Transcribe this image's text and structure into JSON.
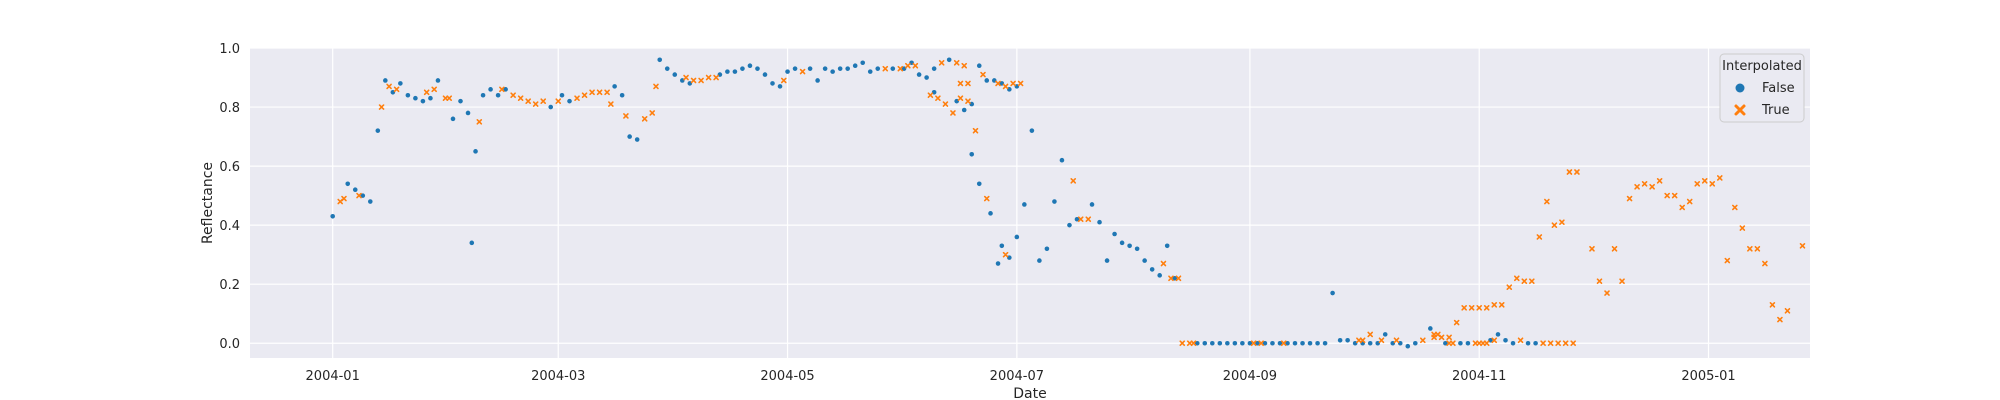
{
  "chart_data": {
    "type": "scatter",
    "title": "",
    "xlabel": "Date",
    "ylabel": "Reflectance",
    "xlim": [
      "2003-12-10",
      "2005-01-28"
    ],
    "ylim": [
      -0.05,
      1.0
    ],
    "x_ticks": [
      "2004-01",
      "2004-03",
      "2004-05",
      "2004-07",
      "2004-09",
      "2004-11",
      "2005-01"
    ],
    "y_ticks": [
      0.0,
      0.2,
      0.4,
      0.6,
      0.8,
      1.0
    ],
    "y_tick_labels": [
      "0.0",
      "0.2",
      "0.4",
      "0.6",
      "0.8",
      "1.0"
    ],
    "grid": true,
    "legend": {
      "title": "Interpolated",
      "position": "top-right"
    },
    "colors": {
      "False": "#1f77b4",
      "True": "#ff7f0e"
    },
    "series": [
      {
        "name": "False",
        "marker": "circle",
        "points": [
          [
            "2004-01-01",
            0.43
          ],
          [
            "2004-01-05",
            0.54
          ],
          [
            "2004-01-07",
            0.52
          ],
          [
            "2004-01-09",
            0.5
          ],
          [
            "2004-01-11",
            0.48
          ],
          [
            "2004-01-13",
            0.72
          ],
          [
            "2004-01-15",
            0.89
          ],
          [
            "2004-01-17",
            0.85
          ],
          [
            "2004-01-19",
            0.88
          ],
          [
            "2004-01-21",
            0.84
          ],
          [
            "2004-01-23",
            0.83
          ],
          [
            "2004-01-25",
            0.82
          ],
          [
            "2004-01-27",
            0.83
          ],
          [
            "2004-01-29",
            0.89
          ],
          [
            "2004-02-02",
            0.76
          ],
          [
            "2004-02-04",
            0.82
          ],
          [
            "2004-02-06",
            0.78
          ],
          [
            "2004-02-07",
            0.34
          ],
          [
            "2004-02-08",
            0.65
          ],
          [
            "2004-02-10",
            0.84
          ],
          [
            "2004-02-12",
            0.86
          ],
          [
            "2004-02-14",
            0.84
          ],
          [
            "2004-02-16",
            0.86
          ],
          [
            "2004-02-28",
            0.8
          ],
          [
            "2004-03-02",
            0.84
          ],
          [
            "2004-03-04",
            0.82
          ],
          [
            "2004-03-16",
            0.87
          ],
          [
            "2004-03-18",
            0.84
          ],
          [
            "2004-03-20",
            0.7
          ],
          [
            "2004-03-22",
            0.69
          ],
          [
            "2004-03-28",
            0.96
          ],
          [
            "2004-03-30",
            0.93
          ],
          [
            "2004-04-01",
            0.91
          ],
          [
            "2004-04-03",
            0.89
          ],
          [
            "2004-04-05",
            0.88
          ],
          [
            "2004-04-13",
            0.91
          ],
          [
            "2004-04-15",
            0.92
          ],
          [
            "2004-04-17",
            0.92
          ],
          [
            "2004-04-19",
            0.93
          ],
          [
            "2004-04-21",
            0.94
          ],
          [
            "2004-04-23",
            0.93
          ],
          [
            "2004-04-25",
            0.91
          ],
          [
            "2004-04-27",
            0.88
          ],
          [
            "2004-04-29",
            0.87
          ],
          [
            "2004-05-01",
            0.92
          ],
          [
            "2004-05-03",
            0.93
          ],
          [
            "2004-05-07",
            0.93
          ],
          [
            "2004-05-09",
            0.89
          ],
          [
            "2004-05-11",
            0.93
          ],
          [
            "2004-05-13",
            0.92
          ],
          [
            "2004-05-15",
            0.93
          ],
          [
            "2004-05-17",
            0.93
          ],
          [
            "2004-05-19",
            0.94
          ],
          [
            "2004-05-21",
            0.95
          ],
          [
            "2004-05-23",
            0.92
          ],
          [
            "2004-05-25",
            0.93
          ],
          [
            "2004-05-29",
            0.93
          ],
          [
            "2004-06-01",
            0.93
          ],
          [
            "2004-06-03",
            0.95
          ],
          [
            "2004-06-05",
            0.91
          ],
          [
            "2004-06-07",
            0.9
          ],
          [
            "2004-06-09",
            0.93
          ],
          [
            "2004-06-13",
            0.96
          ],
          [
            "2004-06-19",
            0.81
          ],
          [
            "2004-06-21",
            0.94
          ],
          [
            "2004-06-23",
            0.89
          ],
          [
            "2004-06-27",
            0.88
          ],
          [
            "2004-06-29",
            0.86
          ],
          [
            "2004-07-01",
            0.87
          ],
          [
            "2004-06-25",
            0.89
          ],
          [
            "2004-06-09",
            0.85
          ],
          [
            "2004-06-15",
            0.82
          ],
          [
            "2004-06-17",
            0.79
          ],
          [
            "2004-06-19",
            0.64
          ],
          [
            "2004-06-21",
            0.54
          ],
          [
            "2004-06-24",
            0.44
          ],
          [
            "2004-06-26",
            0.27
          ],
          [
            "2004-06-27",
            0.33
          ],
          [
            "2004-06-29",
            0.29
          ],
          [
            "2004-07-01",
            0.36
          ],
          [
            "2004-07-03",
            0.47
          ],
          [
            "2004-07-05",
            0.72
          ],
          [
            "2004-07-07",
            0.28
          ],
          [
            "2004-07-09",
            0.32
          ],
          [
            "2004-07-11",
            0.48
          ],
          [
            "2004-07-13",
            0.62
          ],
          [
            "2004-07-15",
            0.4
          ],
          [
            "2004-07-17",
            0.42
          ],
          [
            "2004-07-21",
            0.47
          ],
          [
            "2004-07-23",
            0.41
          ],
          [
            "2004-07-25",
            0.28
          ],
          [
            "2004-07-27",
            0.37
          ],
          [
            "2004-07-29",
            0.34
          ],
          [
            "2004-07-31",
            0.33
          ],
          [
            "2004-08-02",
            0.32
          ],
          [
            "2004-08-04",
            0.28
          ],
          [
            "2004-08-06",
            0.25
          ],
          [
            "2004-08-08",
            0.23
          ],
          [
            "2004-08-10",
            0.33
          ],
          [
            "2004-08-12",
            0.22
          ],
          [
            "2004-08-18",
            0.0
          ],
          [
            "2004-08-20",
            0.0
          ],
          [
            "2004-08-22",
            0.0
          ],
          [
            "2004-08-24",
            0.0
          ],
          [
            "2004-08-26",
            0.0
          ],
          [
            "2004-08-28",
            0.0
          ],
          [
            "2004-08-30",
            0.0
          ],
          [
            "2004-09-01",
            0.0
          ],
          [
            "2004-09-03",
            0.0
          ],
          [
            "2004-09-05",
            0.0
          ],
          [
            "2004-09-07",
            0.0
          ],
          [
            "2004-09-09",
            0.0
          ],
          [
            "2004-09-11",
            0.0
          ],
          [
            "2004-09-13",
            0.0
          ],
          [
            "2004-09-15",
            0.0
          ],
          [
            "2004-09-17",
            0.0
          ],
          [
            "2004-09-19",
            0.0
          ],
          [
            "2004-09-21",
            0.0
          ],
          [
            "2004-09-23",
            0.17
          ],
          [
            "2004-09-25",
            0.01
          ],
          [
            "2004-09-27",
            0.01
          ],
          [
            "2004-09-29",
            0.0
          ],
          [
            "2004-10-01",
            0.0
          ],
          [
            "2004-10-03",
            0.0
          ],
          [
            "2004-10-05",
            0.0
          ],
          [
            "2004-10-07",
            0.03
          ],
          [
            "2004-10-09",
            0.0
          ],
          [
            "2004-10-11",
            0.0
          ],
          [
            "2004-10-13",
            -0.01
          ],
          [
            "2004-10-15",
            0.0
          ],
          [
            "2004-10-19",
            0.05
          ],
          [
            "2004-10-23",
            0.0
          ],
          [
            "2004-10-27",
            0.0
          ],
          [
            "2004-10-29",
            0.0
          ],
          [
            "2004-11-04",
            0.01
          ],
          [
            "2004-11-06",
            0.03
          ],
          [
            "2004-11-08",
            0.01
          ],
          [
            "2004-11-10",
            0.0
          ],
          [
            "2004-11-14",
            0.0
          ],
          [
            "2004-11-16",
            0.0
          ]
        ]
      },
      {
        "name": "True",
        "marker": "x",
        "points": [
          [
            "2004-01-03",
            0.48
          ],
          [
            "2004-01-04",
            0.49
          ],
          [
            "2004-01-08",
            0.5
          ],
          [
            "2004-01-14",
            0.8
          ],
          [
            "2004-01-16",
            0.87
          ],
          [
            "2004-01-18",
            0.86
          ],
          [
            "2004-01-26",
            0.85
          ],
          [
            "2004-01-28",
            0.86
          ],
          [
            "2004-01-31",
            0.83
          ],
          [
            "2004-02-01",
            0.83
          ],
          [
            "2004-02-09",
            0.75
          ],
          [
            "2004-02-15",
            0.86
          ],
          [
            "2004-02-18",
            0.84
          ],
          [
            "2004-02-20",
            0.83
          ],
          [
            "2004-02-22",
            0.82
          ],
          [
            "2004-02-24",
            0.81
          ],
          [
            "2004-02-26",
            0.82
          ],
          [
            "2004-03-01",
            0.82
          ],
          [
            "2004-03-06",
            0.83
          ],
          [
            "2004-03-08",
            0.84
          ],
          [
            "2004-03-10",
            0.85
          ],
          [
            "2004-03-12",
            0.85
          ],
          [
            "2004-03-14",
            0.85
          ],
          [
            "2004-03-15",
            0.81
          ],
          [
            "2004-03-19",
            0.77
          ],
          [
            "2004-03-24",
            0.76
          ],
          [
            "2004-03-26",
            0.78
          ],
          [
            "2004-03-27",
            0.87
          ],
          [
            "2004-04-04",
            0.9
          ],
          [
            "2004-04-06",
            0.89
          ],
          [
            "2004-04-08",
            0.89
          ],
          [
            "2004-04-10",
            0.9
          ],
          [
            "2004-04-12",
            0.9
          ],
          [
            "2004-04-30",
            0.89
          ],
          [
            "2004-05-05",
            0.92
          ],
          [
            "2004-05-27",
            0.93
          ],
          [
            "2004-05-31",
            0.93
          ],
          [
            "2004-06-02",
            0.94
          ],
          [
            "2004-06-04",
            0.94
          ],
          [
            "2004-06-11",
            0.95
          ],
          [
            "2004-06-15",
            0.95
          ],
          [
            "2004-06-17",
            0.94
          ],
          [
            "2004-06-16",
            0.88
          ],
          [
            "2004-06-18",
            0.88
          ],
          [
            "2004-06-22",
            0.91
          ],
          [
            "2004-06-26",
            0.88
          ],
          [
            "2004-06-28",
            0.87
          ],
          [
            "2004-06-30",
            0.88
          ],
          [
            "2004-07-02",
            0.88
          ],
          [
            "2004-06-08",
            0.84
          ],
          [
            "2004-06-10",
            0.83
          ],
          [
            "2004-06-12",
            0.81
          ],
          [
            "2004-06-14",
            0.78
          ],
          [
            "2004-06-16",
            0.83
          ],
          [
            "2004-06-18",
            0.82
          ],
          [
            "2004-06-20",
            0.72
          ],
          [
            "2004-06-23",
            0.49
          ],
          [
            "2004-06-28",
            0.3
          ],
          [
            "2004-07-16",
            0.55
          ],
          [
            "2004-07-18",
            0.42
          ],
          [
            "2004-07-20",
            0.42
          ],
          [
            "2004-08-09",
            0.27
          ],
          [
            "2004-08-11",
            0.22
          ],
          [
            "2004-08-13",
            0.22
          ],
          [
            "2004-08-14",
            0.0
          ],
          [
            "2004-08-16",
            0.0
          ],
          [
            "2004-08-17",
            0.0
          ],
          [
            "2004-09-02",
            0.0
          ],
          [
            "2004-09-04",
            0.0
          ],
          [
            "2004-09-10",
            0.0
          ],
          [
            "2004-09-30",
            0.01
          ],
          [
            "2004-10-06",
            0.01
          ],
          [
            "2004-10-10",
            0.01
          ],
          [
            "2004-10-17",
            0.01
          ],
          [
            "2004-10-20",
            0.03
          ],
          [
            "2004-10-21",
            0.03
          ],
          [
            "2004-10-24",
            0.0
          ],
          [
            "2004-10-25",
            0.0
          ],
          [
            "2004-10-31",
            0.0
          ],
          [
            "2004-11-01",
            0.0
          ],
          [
            "2004-11-02",
            0.0
          ],
          [
            "2004-11-03",
            0.0
          ],
          [
            "2004-11-05",
            0.01
          ],
          [
            "2004-11-12",
            0.01
          ],
          [
            "2004-11-18",
            0.0
          ],
          [
            "2004-11-20",
            0.0
          ],
          [
            "2004-11-22",
            0.0
          ],
          [
            "2004-11-24",
            0.0
          ],
          [
            "2004-11-26",
            0.0
          ],
          [
            "2004-10-01",
            0.01
          ],
          [
            "2004-10-03",
            0.03
          ],
          [
            "2004-10-20",
            0.02
          ],
          [
            "2004-10-22",
            0.02
          ],
          [
            "2004-10-24",
            0.02
          ],
          [
            "2004-10-26",
            0.07
          ],
          [
            "2004-10-28",
            0.12
          ],
          [
            "2004-10-30",
            0.12
          ],
          [
            "2004-11-01",
            0.12
          ],
          [
            "2004-11-03",
            0.12
          ],
          [
            "2004-11-05",
            0.13
          ],
          [
            "2004-11-07",
            0.13
          ],
          [
            "2004-11-09",
            0.19
          ],
          [
            "2004-11-11",
            0.22
          ],
          [
            "2004-11-13",
            0.21
          ],
          [
            "2004-11-15",
            0.21
          ],
          [
            "2004-11-17",
            0.36
          ],
          [
            "2004-11-19",
            0.48
          ],
          [
            "2004-11-21",
            0.4
          ],
          [
            "2004-11-23",
            0.41
          ],
          [
            "2004-11-25",
            0.58
          ],
          [
            "2004-11-27",
            0.58
          ],
          [
            "2004-12-01",
            0.32
          ],
          [
            "2004-12-03",
            0.21
          ],
          [
            "2004-12-05",
            0.17
          ],
          [
            "2004-12-07",
            0.32
          ],
          [
            "2004-12-09",
            0.21
          ],
          [
            "2004-12-11",
            0.49
          ],
          [
            "2004-12-13",
            0.53
          ],
          [
            "2004-12-15",
            0.54
          ],
          [
            "2004-12-17",
            0.53
          ],
          [
            "2004-12-19",
            0.55
          ],
          [
            "2004-12-21",
            0.5
          ],
          [
            "2004-12-23",
            0.5
          ],
          [
            "2004-12-25",
            0.46
          ],
          [
            "2004-12-27",
            0.48
          ],
          [
            "2004-12-29",
            0.54
          ],
          [
            "2004-12-31",
            0.55
          ],
          [
            "2005-01-02",
            0.54
          ],
          [
            "2005-01-04",
            0.56
          ],
          [
            "2005-01-06",
            0.28
          ],
          [
            "2005-01-08",
            0.46
          ],
          [
            "2005-01-10",
            0.39
          ],
          [
            "2005-01-12",
            0.32
          ],
          [
            "2005-01-14",
            0.32
          ],
          [
            "2005-01-16",
            0.27
          ],
          [
            "2005-01-18",
            0.13
          ],
          [
            "2005-01-20",
            0.08
          ],
          [
            "2005-01-22",
            0.11
          ],
          [
            "2005-01-26",
            0.33
          ]
        ]
      }
    ]
  }
}
